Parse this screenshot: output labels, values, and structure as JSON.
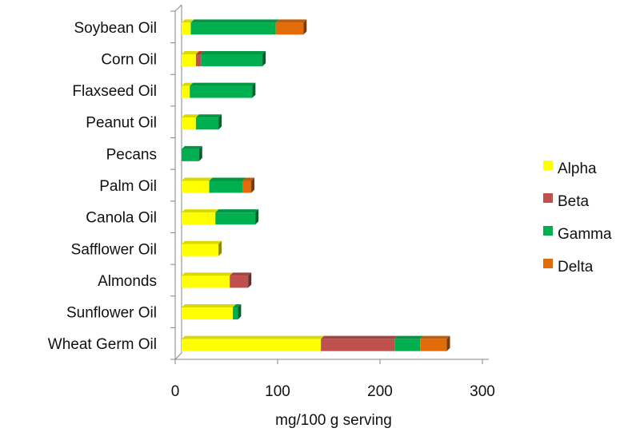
{
  "chart_data": {
    "type": "bar",
    "orientation": "horizontal",
    "stacked": true,
    "title": "",
    "xlabel": "mg/100 g serving",
    "ylabel": "",
    "xlim": [
      0,
      300
    ],
    "xticks": [
      0,
      100,
      200,
      300
    ],
    "grid": false,
    "legend_position": "right",
    "categories": [
      "Soybean Oil",
      "Corn Oil",
      "Flaxseed Oil",
      "Peanut Oil",
      "Pecans",
      "Palm Oil",
      "Canola Oil",
      "Safflower Oil",
      "Almonds",
      "Sunflower Oil",
      "Wheat Germ Oil"
    ],
    "series": [
      {
        "name": "Alpha",
        "color": "#ffff00",
        "values": [
          9,
          14,
          8,
          14,
          0,
          27,
          33,
          36,
          47,
          50,
          136
        ]
      },
      {
        "name": "Beta",
        "color": "#c0504d",
        "values": [
          0,
          5,
          0,
          0,
          0,
          0,
          0,
          0,
          18,
          0,
          72
        ]
      },
      {
        "name": "Gamma",
        "color": "#00b050",
        "values": [
          83,
          60,
          61,
          22,
          17,
          33,
          39,
          0,
          0,
          5,
          25
        ]
      },
      {
        "name": "Delta",
        "color": "#e36c0a",
        "values": [
          27,
          0,
          0,
          0,
          0,
          8,
          0,
          0,
          0,
          0,
          26
        ]
      }
    ]
  }
}
